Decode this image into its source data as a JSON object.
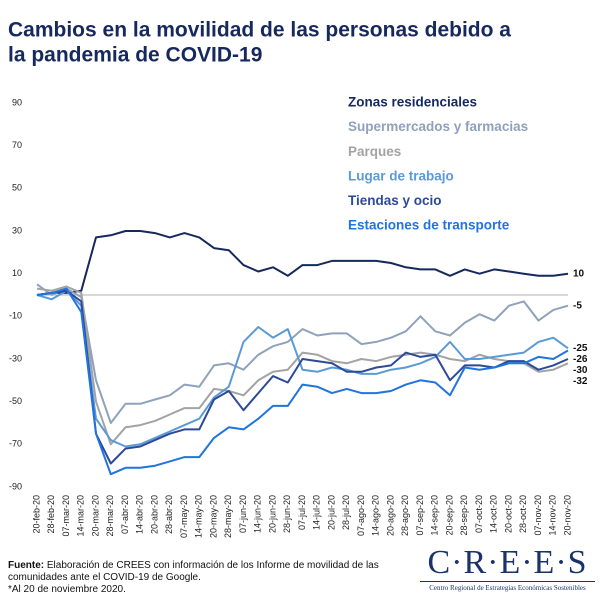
{
  "chart_data": {
    "type": "line",
    "title": [
      "Cambios en la movilidad de las personas debido a",
      "la pandemia de COVID-19"
    ],
    "categories": [
      "20-feb-20",
      "28-feb-20",
      "07-mar-20",
      "14-mar-20",
      "20-mar-20",
      "28-mar-20",
      "07-abr-20",
      "14-abr-20",
      "20-abr-20",
      "28-abr-20",
      "07-may-20",
      "14-may-20",
      "20-may-20",
      "28-may-20",
      "07-jun-20",
      "14-jun-20",
      "20-jun-20",
      "28-jun-20",
      "07-jul-20",
      "14-jul-20",
      "20-jul-20",
      "28-jul-20",
      "07-ago-20",
      "14-ago-20",
      "20-ago-20",
      "28-ago-20",
      "07-sep-20",
      "14-sep-20",
      "20-sep-20",
      "28-sep-20",
      "07-oct-20",
      "14-oct-20",
      "20-oct-20",
      "28-oct-20",
      "07-nov-20",
      "14-nov-20",
      "20-nov-20"
    ],
    "series": [
      {
        "name": "Zonas residenciales",
        "color": "#16295e",
        "values": [
          0,
          1,
          1,
          2,
          27,
          28,
          30,
          30,
          29,
          27,
          29,
          27,
          22,
          21,
          14,
          11,
          13,
          9,
          14,
          14,
          16,
          16,
          16,
          16,
          15,
          13,
          12,
          12,
          9,
          12,
          10,
          12,
          11,
          10,
          9,
          9,
          10
        ]
      },
      {
        "name": "Supermercados y farmacias",
        "color": "#8fa2bb",
        "values": [
          5,
          0,
          3,
          -1,
          -40,
          -60,
          -51,
          -51,
          -49,
          -47,
          -42,
          -43,
          -33,
          -32,
          -35,
          -28,
          -24,
          -22,
          -16,
          -19,
          -18,
          -18,
          -23,
          -22,
          -20,
          -17,
          -10,
          -17,
          -19,
          -13,
          -9,
          -12,
          -5,
          -3,
          -12,
          -7,
          -5
        ]
      },
      {
        "name": "Parques",
        "color": "#a3a3a3",
        "values": [
          3,
          2,
          4,
          1,
          -50,
          -70,
          -62,
          -61,
          -59,
          -56,
          -53,
          -53,
          -44,
          -45,
          -47,
          -40,
          -36,
          -35,
          -27,
          -28,
          -31,
          -32,
          -30,
          -31,
          -29,
          -28,
          -27,
          -28,
          -30,
          -31,
          -28,
          -30,
          -31,
          -32,
          -36,
          -35,
          -32
        ]
      },
      {
        "name": "Lugar de trabajo",
        "color": "#5b9bd5",
        "values": [
          0,
          -2,
          2,
          -5,
          -58,
          -68,
          -71,
          -70,
          -67,
          -64,
          -61,
          -58,
          -48,
          -43,
          -22,
          -15,
          -20,
          -16,
          -35,
          -36,
          -34,
          -35,
          -37,
          -37,
          -35,
          -34,
          -32,
          -29,
          -22,
          -30,
          -30,
          -29,
          -28,
          -27,
          -22,
          -20,
          -25
        ]
      },
      {
        "name": "Tiendas y ocio",
        "color": "#2d4a99",
        "values": [
          0,
          1,
          2,
          -3,
          -65,
          -79,
          -72,
          -71,
          -68,
          -65,
          -63,
          -63,
          -49,
          -45,
          -54,
          -46,
          -38,
          -41,
          -30,
          -31,
          -32,
          -36,
          -36,
          -34,
          -33,
          -27,
          -29,
          -28,
          -40,
          -33,
          -33,
          -34,
          -31,
          -31,
          -35,
          -33,
          -30
        ]
      },
      {
        "name": "Estaciones de transporte",
        "color": "#1f74e0",
        "values": [
          0,
          1,
          3,
          -8,
          -65,
          -84,
          -81,
          -81,
          -80,
          -78,
          -76,
          -76,
          -67,
          -62,
          -63,
          -58,
          -52,
          -52,
          -42,
          -43,
          -46,
          -44,
          -46,
          -46,
          -45,
          -42,
          -40,
          -41,
          -47,
          -34,
          -35,
          -34,
          -32,
          -32,
          -29,
          -30,
          -26
        ]
      }
    ],
    "ylim": [
      -90,
      90
    ],
    "yticks": [
      90,
      70,
      50,
      30,
      10,
      -10,
      -30,
      -50,
      -70,
      -90
    ],
    "grid": false
  },
  "footer": {
    "source_label": "Fuente:",
    "source_text": "Elaboración de CREES con información de los Informe de movilidad de las comunidades ante el COVID-19 de Google.",
    "note": "*Al 20 de noviembre 2020."
  },
  "logo": {
    "name": "C·R·E·E·S",
    "subtitle": "Centro Regional de Estrategias Económicas Sostenibles"
  }
}
